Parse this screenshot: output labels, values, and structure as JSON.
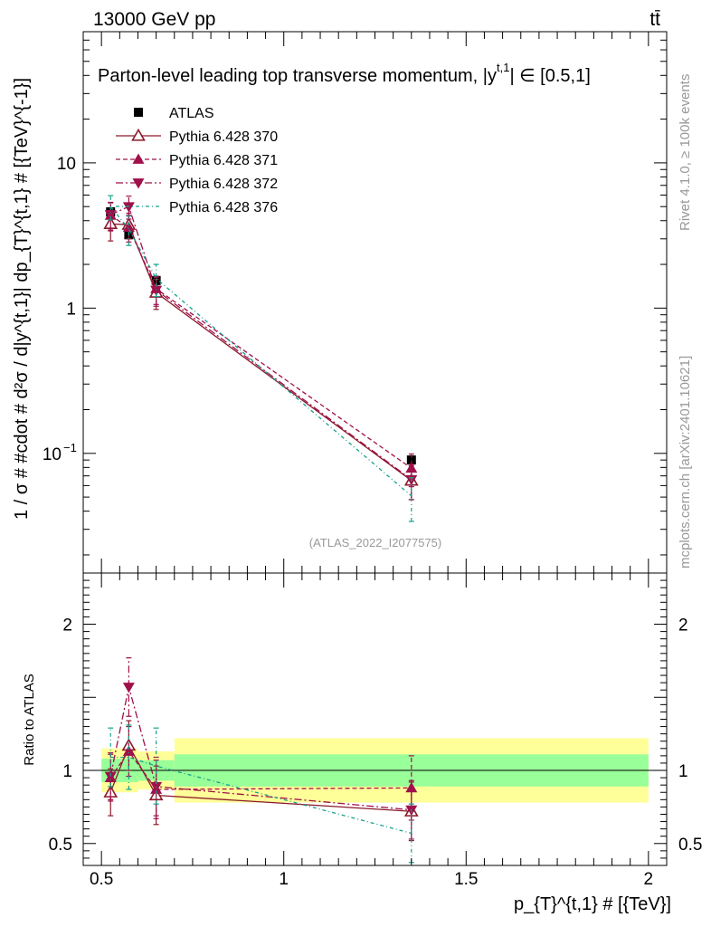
{
  "header": {
    "energy_label": "13000 GeV pp",
    "process_label": "tt̄"
  },
  "side_labels": {
    "rivet": "Rivet 4.1.0, ≥ 100k events",
    "mcplots": "mcplots.cern.ch [arXiv:2401.10621]"
  },
  "chart_data": [
    {
      "type": "scatter",
      "panel": "main",
      "title": "Parton-level leading top transverse momentum, |y",
      "title_sup": "t,1",
      "title_tail": "| ∈ [0.5,1]",
      "watermark": "(ATLAS_2022_I2077575)",
      "ylabel": "1 / σ # #cdot # d²σ / d|y^{t,1}| dp_{T}^{t,1} # [{TeV}^{-1}]",
      "yscale": "log",
      "xlim": [
        0.45,
        2.05
      ],
      "ylim": [
        0.015,
        80
      ],
      "ytick_labels": [
        {
          "value": 10,
          "label": "10"
        },
        {
          "value": 1,
          "label": "1"
        },
        {
          "value": 0.1,
          "label": "10",
          "sup": "−1"
        }
      ],
      "bins": [
        [
          0.5,
          0.55
        ],
        [
          0.55,
          0.6
        ],
        [
          0.6,
          0.7
        ],
        [
          0.7,
          2.0
        ]
      ],
      "x": [
        0.525,
        0.575,
        0.65,
        1.35
      ],
      "series": [
        {
          "name": "ATLAS",
          "marker": "square",
          "color": "#000000",
          "line": "none",
          "values": [
            4.6,
            3.2,
            1.55,
            0.09
          ],
          "errors": [
            0.3,
            0.2,
            0.1,
            0.006
          ]
        },
        {
          "name": "Pythia 6.428 370",
          "marker": "triangle-up-open",
          "color": "#8b1a2b",
          "line": "solid",
          "values": [
            3.8,
            3.75,
            1.28,
            0.065
          ],
          "errors": [
            0.9,
            0.75,
            0.3,
            0.017
          ]
        },
        {
          "name": "Pythia 6.428 371",
          "marker": "triangle-up",
          "color": "#a0104a",
          "line": "dashed",
          "values": [
            4.35,
            3.6,
            1.36,
            0.079
          ],
          "errors": [
            0.95,
            0.75,
            0.3,
            0.02
          ]
        },
        {
          "name": "Pythia 6.428 372",
          "marker": "triangle-down",
          "color": "#a0104a",
          "line": "dashdot",
          "values": [
            4.4,
            5.0,
            1.33,
            0.066
          ],
          "errors": [
            0.95,
            0.9,
            0.3,
            0.018
          ]
        },
        {
          "name": "Pythia 6.428 376",
          "marker": "none",
          "color": "#14a08c",
          "line": "dashdotted-fine",
          "values": [
            5.0,
            3.5,
            1.6,
            0.051
          ],
          "errors": [
            0.95,
            0.8,
            0.4,
            0.017
          ]
        }
      ]
    },
    {
      "type": "scatter",
      "panel": "ratio",
      "ylabel": "Ratio to ATLAS",
      "xlabel": "p_{T}^{t,1} # [{TeV}]",
      "xlim": [
        0.45,
        2.05
      ],
      "ylim": [
        0.35,
        2.35
      ],
      "xtick_labels": [
        {
          "value": 0.5,
          "label": "0.5"
        },
        {
          "value": 1,
          "label": "1"
        },
        {
          "value": 1.5,
          "label": "1.5"
        },
        {
          "value": 2,
          "label": "2"
        }
      ],
      "ytick_labels": [
        {
          "value": 0.5,
          "label": "0.5"
        },
        {
          "value": 1,
          "label": "1"
        },
        {
          "value": 2,
          "label": "2"
        }
      ],
      "bands": [
        {
          "bin": [
            0.5,
            0.55
          ],
          "stat": [
            0.92,
            1.08
          ],
          "total": [
            0.85,
            1.15
          ]
        },
        {
          "bin": [
            0.55,
            0.6
          ],
          "stat": [
            0.92,
            1.08
          ],
          "total": [
            0.85,
            1.15
          ]
        },
        {
          "bin": [
            0.6,
            0.7
          ],
          "stat": [
            0.93,
            1.07
          ],
          "total": [
            0.87,
            1.13
          ]
        },
        {
          "bin": [
            0.7,
            2.0
          ],
          "stat": [
            0.89,
            1.11
          ],
          "total": [
            0.78,
            1.22
          ]
        }
      ],
      "band_colors": {
        "total": "#ffff99",
        "stat": "#99ff99"
      },
      "x": [
        0.525,
        0.575,
        0.65,
        1.35
      ],
      "series": [
        {
          "name": "Pythia 6.428 370",
          "marker": "triangle-up-open",
          "color": "#8b1a2b",
          "line": "solid",
          "values": [
            0.85,
            1.17,
            0.83,
            0.72
          ],
          "errors": [
            0.16,
            0.17,
            0.2,
            0.2
          ]
        },
        {
          "name": "Pythia 6.428 371",
          "marker": "triangle-up",
          "color": "#a0104a",
          "line": "dashed",
          "values": [
            0.95,
            1.13,
            0.87,
            0.88
          ],
          "errors": [
            0.16,
            0.17,
            0.2,
            0.22
          ]
        },
        {
          "name": "Pythia 6.428 372",
          "marker": "triangle-down",
          "color": "#a0104a",
          "line": "dashdot",
          "values": [
            0.96,
            1.57,
            0.89,
            0.73
          ],
          "errors": [
            0.16,
            0.2,
            0.2,
            0.2
          ]
        },
        {
          "name": "Pythia 6.428 376",
          "marker": "none",
          "color": "#14a08c",
          "line": "dashdotted-fine",
          "values": [
            1.09,
            1.09,
            1.03,
            0.57
          ],
          "errors": [
            0.2,
            0.22,
            0.26,
            0.2
          ]
        }
      ]
    }
  ]
}
